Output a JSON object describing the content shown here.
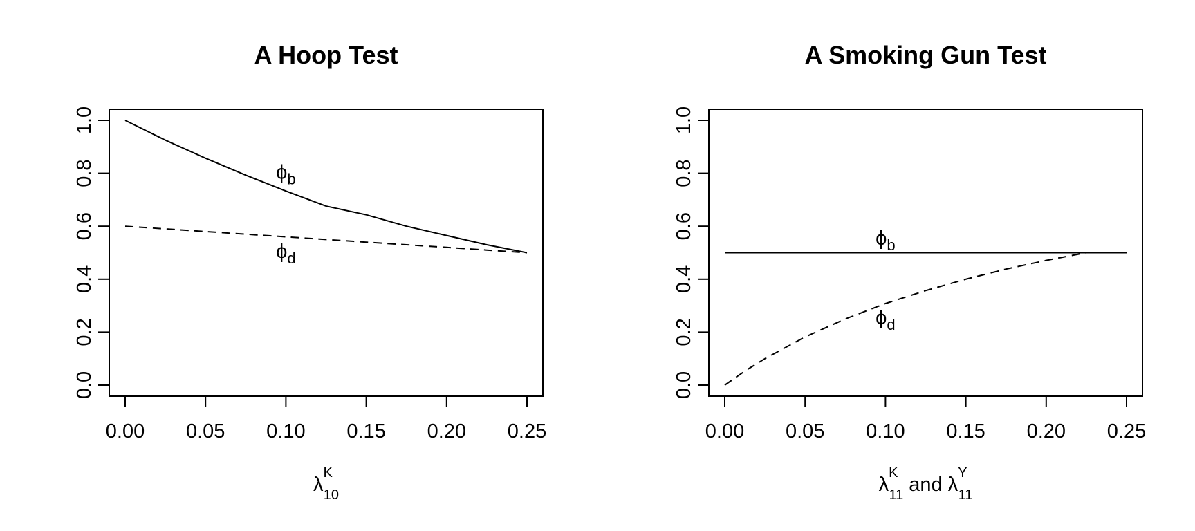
{
  "chart_data": [
    {
      "type": "line",
      "title": "A Hoop Test",
      "xlabel": {
        "base": "λ",
        "sup": "K",
        "sub": "10"
      },
      "xlim": [
        0,
        0.25
      ],
      "ylim": [
        0,
        1
      ],
      "x_ticks": [
        0.0,
        0.05,
        0.1,
        0.15,
        0.2,
        0.25
      ],
      "x_tick_labels": [
        "0.00",
        "0.05",
        "0.10",
        "0.15",
        "0.20",
        "0.25"
      ],
      "y_ticks": [
        0.0,
        0.2,
        0.4,
        0.6,
        0.8,
        1.0
      ],
      "y_tick_labels": [
        "0.0",
        "0.2",
        "0.4",
        "0.6",
        "0.8",
        "1.0"
      ],
      "grid": false,
      "legend": "none",
      "series": [
        {
          "label": {
            "base": "ϕ",
            "sub": "b"
          },
          "label_at": [
            0.1,
            0.78
          ],
          "style": "solid",
          "x": [
            0.0,
            0.025,
            0.05,
            0.075,
            0.1,
            0.125,
            0.15,
            0.175,
            0.2,
            0.225,
            0.25
          ],
          "y": [
            1.0,
            0.925,
            0.857,
            0.793,
            0.733,
            0.676,
            0.643,
            0.6,
            0.565,
            0.53,
            0.5
          ]
        },
        {
          "label": {
            "base": "ϕ",
            "sub": "d"
          },
          "label_at": [
            0.1,
            0.48
          ],
          "style": "dashed",
          "x": [
            0.0,
            0.025,
            0.05,
            0.075,
            0.1,
            0.125,
            0.15,
            0.175,
            0.2,
            0.225,
            0.25
          ],
          "y": [
            0.6,
            0.59,
            0.58,
            0.57,
            0.56,
            0.55,
            0.54,
            0.53,
            0.52,
            0.51,
            0.5
          ]
        }
      ]
    },
    {
      "type": "line",
      "title": "A Smoking Gun Test",
      "xlabel": {
        "base": "λ",
        "sup": "K",
        "sub": "11",
        "mid": "and",
        "base2": "λ",
        "sup2": "Y",
        "sub2": "11"
      },
      "xlim": [
        0,
        0.25
      ],
      "ylim": [
        0,
        1
      ],
      "x_ticks": [
        0.0,
        0.05,
        0.1,
        0.15,
        0.2,
        0.25
      ],
      "x_tick_labels": [
        "0.00",
        "0.05",
        "0.10",
        "0.15",
        "0.20",
        "0.25"
      ],
      "y_ticks": [
        0.0,
        0.2,
        0.4,
        0.6,
        0.8,
        1.0
      ],
      "y_tick_labels": [
        "0.0",
        "0.2",
        "0.4",
        "0.6",
        "0.8",
        "1.0"
      ],
      "grid": false,
      "legend": "none",
      "series": [
        {
          "label": {
            "base": "ϕ",
            "sub": "b"
          },
          "label_at": [
            0.1,
            0.53
          ],
          "style": "solid",
          "x": [
            0.0,
            0.25
          ],
          "y": [
            0.5,
            0.5
          ]
        },
        {
          "label": {
            "base": "ϕ",
            "sub": "d"
          },
          "label_at": [
            0.1,
            0.23
          ],
          "style": "dashed",
          "x": [
            0.0,
            0.0125,
            0.025,
            0.05,
            0.075,
            0.1,
            0.125,
            0.15,
            0.175,
            0.2,
            0.225,
            0.25
          ],
          "y": [
            0.0,
            0.053,
            0.1,
            0.182,
            0.25,
            0.308,
            0.357,
            0.4,
            0.438,
            0.471,
            0.5,
            0.5
          ]
        }
      ]
    }
  ]
}
